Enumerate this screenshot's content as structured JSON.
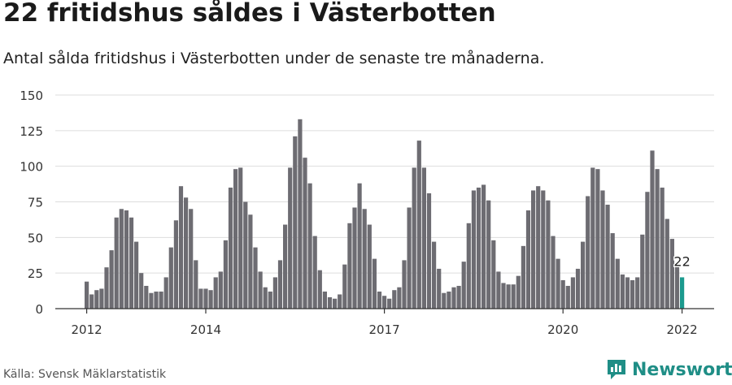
{
  "header": {
    "title": "22 fritidshus såldes i Västerbotten",
    "subtitle": "Antal sålda fritidshus i Västerbotten under de senaste tre månaderna."
  },
  "footer": {
    "source": "Källa: Svensk Mäklarstatistik",
    "brand": "Newsworthy"
  },
  "colors": {
    "bar": "#6d6c72",
    "highlight": "#1b9a8e",
    "grid": "#dddddd",
    "axis": "#333333",
    "brand": "#1f8e86"
  },
  "chart_data": {
    "type": "bar",
    "title": "22 fritidshus såldes i Västerbotten",
    "subtitle": "Antal sålda fritidshus i Västerbotten under de senaste tre månaderna.",
    "ylim": [
      0,
      150
    ],
    "yticks": [
      0,
      25,
      50,
      75,
      100,
      125,
      150
    ],
    "xticks": [
      {
        "label": "2012",
        "index": 0
      },
      {
        "label": "2014",
        "index": 24
      },
      {
        "label": "2017",
        "index": 60
      },
      {
        "label": "2020",
        "index": 96
      },
      {
        "label": "2022",
        "index": 120
      }
    ],
    "grid": true,
    "highlight_label": "22",
    "values": [
      19,
      10,
      13,
      14,
      29,
      41,
      64,
      70,
      69,
      64,
      47,
      25,
      16,
      11,
      12,
      12,
      22,
      43,
      62,
      86,
      78,
      70,
      34,
      14,
      14,
      13,
      22,
      26,
      48,
      85,
      98,
      99,
      75,
      66,
      43,
      26,
      15,
      12,
      22,
      34,
      59,
      99,
      121,
      133,
      106,
      88,
      51,
      27,
      12,
      8,
      7,
      10,
      31,
      60,
      71,
      88,
      70,
      59,
      35,
      12,
      9,
      7,
      13,
      15,
      34,
      71,
      99,
      118,
      99,
      81,
      47,
      28,
      11,
      12,
      15,
      16,
      33,
      60,
      83,
      85,
      87,
      76,
      48,
      26,
      18,
      17,
      17,
      23,
      44,
      69,
      83,
      86,
      83,
      76,
      51,
      35,
      20,
      16,
      22,
      28,
      47,
      79,
      99,
      98,
      83,
      73,
      53,
      35,
      24,
      22,
      20,
      22,
      52,
      82,
      111,
      98,
      85,
      63,
      49,
      30,
      22
    ]
  }
}
